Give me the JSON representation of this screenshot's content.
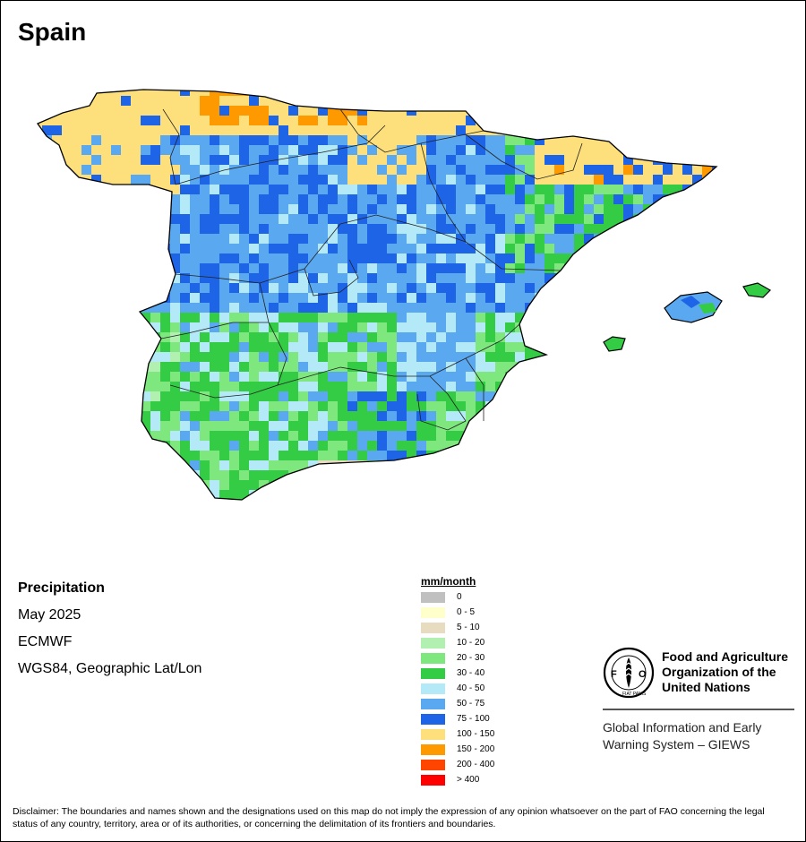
{
  "title": "Spain",
  "info": {
    "variable": "Precipitation",
    "period": "May 2025",
    "source": "ECMWF",
    "projection": "WGS84, Geographic Lat/Lon"
  },
  "legend": {
    "unit": "mm/month",
    "classes": [
      {
        "label": "0",
        "color": "#c0c0c0"
      },
      {
        "label": "0 - 5",
        "color": "#ffffcc"
      },
      {
        "label": "5 - 10",
        "color": "#e8dcc0"
      },
      {
        "label": "10 - 20",
        "color": "#b2f0b2"
      },
      {
        "label": "20 - 30",
        "color": "#7ee87e"
      },
      {
        "label": "30 - 40",
        "color": "#33cc44"
      },
      {
        "label": "40 - 50",
        "color": "#b4eaf8"
      },
      {
        "label": "50 - 75",
        "color": "#5aa8f0"
      },
      {
        "label": "75 - 100",
        "color": "#1e64e6"
      },
      {
        "label": "100 - 150",
        "color": "#fde07c"
      },
      {
        "label": "150 - 200",
        "color": "#ff9900"
      },
      {
        "label": "200 - 400",
        "color": "#ff4500"
      },
      {
        "label": "> 400",
        "color": "#ff0000"
      }
    ]
  },
  "organization": {
    "logo_text": "FAO",
    "logo_motto": "FIAT PANIS",
    "name_line1": "Food and Agriculture",
    "name_line2": "Organization of the",
    "name_line3": "United Nations",
    "system_line1": "Global Information and Early",
    "system_line2": "Warning System – GIEWS"
  },
  "disclaimer": "Disclaimer: The boundaries and names shown and the designations used on this map do not imply the expression of any opinion whatsoever on the part of FAO concerning the legal status of any country, territory, area or of its authorities, or concerning the delimitation of its frontiers and boundaries."
}
